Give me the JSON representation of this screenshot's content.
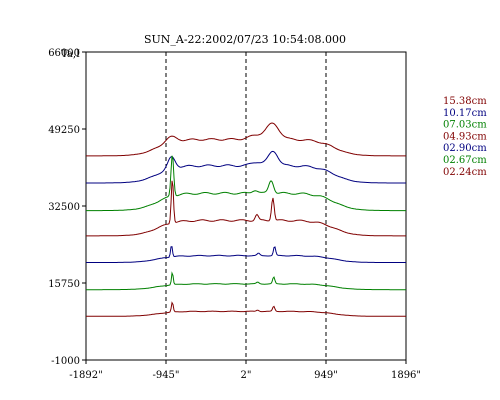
{
  "chart_data": {
    "type": "line",
    "title": "SUN_A-22:2002/07/23 10:54:08.000",
    "ylabel": "Ta,I",
    "xlabel": "",
    "x_ticks": [
      "-1892\"",
      "-945\"",
      "2\"",
      "949\"",
      "1896\""
    ],
    "x_tick_values": [
      -1892,
      -945,
      2,
      949,
      1896
    ],
    "y_ticks": [
      "66000",
      "49250",
      "32500",
      "15750",
      "-1000"
    ],
    "y_tick_values": [
      66000,
      49250,
      32500,
      15750,
      -1000
    ],
    "xlim": [
      -1892,
      1896
    ],
    "ylim": [
      -1000,
      66000
    ],
    "dashed_lines_x": [
      -945,
      2,
      949
    ],
    "grid": false,
    "legend_position": "right",
    "series": [
      {
        "name": "15.38cm",
        "color": "#800000",
        "offset": 43400,
        "amp": 6000,
        "peak1": 0.2,
        "peak2": 0.55,
        "c1": -890,
        "c2": 320,
        "w1": 90,
        "w2": 110
      },
      {
        "name": "10.17cm",
        "color": "#000080",
        "offset": 37500,
        "amp": 6300,
        "peak1": 0.4,
        "peak2": 0.5,
        "c1": -880,
        "c2": 325,
        "w1": 60,
        "w2": 80
      },
      {
        "name": "07.03cm",
        "color": "#008000",
        "offset": 31500,
        "amp": 6300,
        "peak1": 1.45,
        "peak2": 0.45,
        "c1": -870,
        "c2": 300,
        "w1": 22,
        "w2": 40
      },
      {
        "name": "04.93cm",
        "color": "#800000",
        "offset": 26000,
        "amp": 5600,
        "peak1": 1.75,
        "peak2": 0.9,
        "c1": -870,
        "c2": 320,
        "w1": 18,
        "w2": 22
      },
      {
        "name": "02.90cm",
        "color": "#000080",
        "offset": 20200,
        "amp": 2500,
        "peak1": 1.05,
        "peak2": 0.8,
        "c1": -880,
        "c2": 340,
        "w1": 15,
        "w2": 18
      },
      {
        "name": "02.67cm",
        "color": "#008000",
        "offset": 14300,
        "amp": 2100,
        "peak1": 1.3,
        "peak2": 0.7,
        "c1": -870,
        "c2": 330,
        "w1": 14,
        "w2": 18
      },
      {
        "name": "02.24cm",
        "color": "#800000",
        "offset": 8500,
        "amp": 1800,
        "peak1": 1.2,
        "peak2": 0.6,
        "c1": -870,
        "c2": 330,
        "w1": 15,
        "w2": 18
      }
    ]
  }
}
